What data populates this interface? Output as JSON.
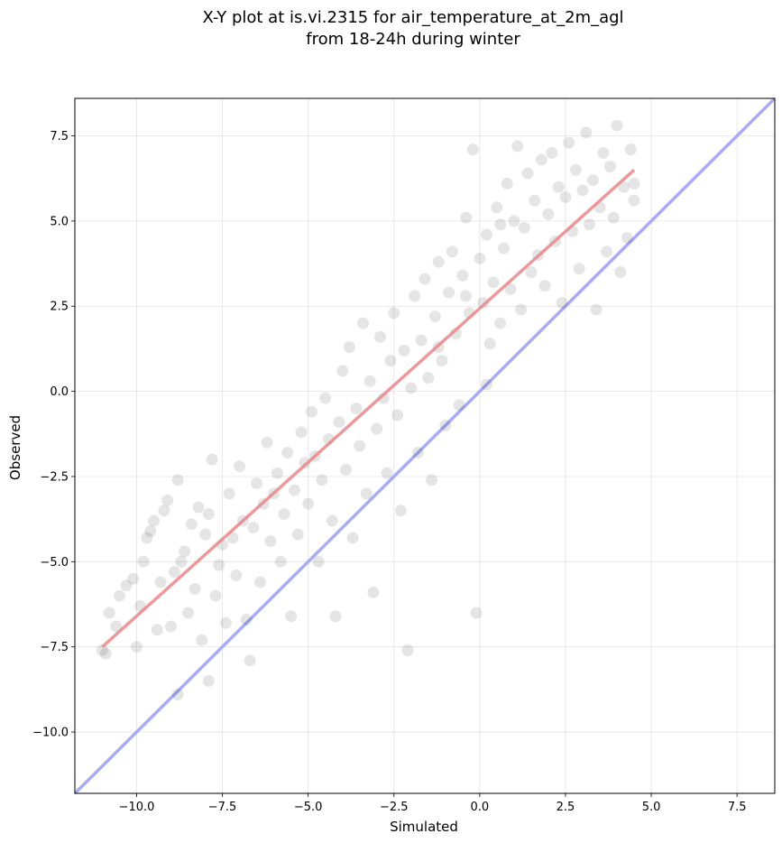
{
  "chart_data": {
    "type": "scatter",
    "title": "X-Y plot at is.vi.2315 for air_temperature_at_2m_agl",
    "subtitle": "from 18-24h during winter",
    "xlabel": "Simulated",
    "ylabel": "Observed",
    "xlim": [
      -11.8,
      8.6
    ],
    "ylim": [
      -11.8,
      8.6
    ],
    "x_ticks": [
      -10.0,
      -7.5,
      -5.0,
      -2.5,
      0.0,
      2.5,
      5.0,
      7.5
    ],
    "y_ticks": [
      -10.0,
      -7.5,
      -5.0,
      -2.5,
      0.0,
      2.5,
      5.0,
      7.5
    ],
    "x_tick_labels": [
      "−10.0",
      "−7.5",
      "−5.0",
      "−2.5",
      "0.0",
      "2.5",
      "5.0",
      "7.5"
    ],
    "y_tick_labels": [
      "−10.0",
      "−7.5",
      "−5.0",
      "−2.5",
      "0.0",
      "2.5",
      "5.0",
      "7.5"
    ],
    "grid": true,
    "point_color": "#000000",
    "point_alpha": 0.1,
    "points": [
      [
        -11.0,
        -7.6
      ],
      [
        -10.9,
        -7.7
      ],
      [
        -10.8,
        -6.5
      ],
      [
        -10.6,
        -6.9
      ],
      [
        -10.5,
        -6.0
      ],
      [
        -10.3,
        -5.7
      ],
      [
        -10.1,
        -5.5
      ],
      [
        -10.0,
        -7.5
      ],
      [
        -9.9,
        -6.3
      ],
      [
        -9.8,
        -5.0
      ],
      [
        -9.7,
        -4.3
      ],
      [
        -9.6,
        -4.1
      ],
      [
        -9.5,
        -3.8
      ],
      [
        -9.4,
        -7.0
      ],
      [
        -9.3,
        -5.6
      ],
      [
        -9.2,
        -3.5
      ],
      [
        -9.1,
        -3.2
      ],
      [
        -9.0,
        -6.9
      ],
      [
        -8.9,
        -5.3
      ],
      [
        -8.8,
        -2.6
      ],
      [
        -8.8,
        -8.9
      ],
      [
        -8.7,
        -5.0
      ],
      [
        -8.6,
        -4.7
      ],
      [
        -8.5,
        -6.5
      ],
      [
        -8.4,
        -3.9
      ],
      [
        -8.3,
        -5.8
      ],
      [
        -8.2,
        -3.4
      ],
      [
        -8.1,
        -7.3
      ],
      [
        -8.0,
        -4.2
      ],
      [
        -7.9,
        -3.6
      ],
      [
        -7.9,
        -8.5
      ],
      [
        -7.8,
        -2.0
      ],
      [
        -7.7,
        -6.0
      ],
      [
        -7.6,
        -5.1
      ],
      [
        -7.5,
        -4.5
      ],
      [
        -7.4,
        -6.8
      ],
      [
        -7.3,
        -3.0
      ],
      [
        -7.2,
        -4.3
      ],
      [
        -7.1,
        -5.4
      ],
      [
        -7.0,
        -2.2
      ],
      [
        -6.9,
        -3.8
      ],
      [
        -6.8,
        -6.7
      ],
      [
        -6.7,
        -7.9
      ],
      [
        -6.6,
        -4.0
      ],
      [
        -6.5,
        -2.7
      ],
      [
        -6.4,
        -5.6
      ],
      [
        -6.3,
        -3.3
      ],
      [
        -6.2,
        -1.5
      ],
      [
        -6.1,
        -4.4
      ],
      [
        -6.0,
        -3.0
      ],
      [
        -5.9,
        -2.4
      ],
      [
        -5.8,
        -5.0
      ],
      [
        -5.7,
        -3.6
      ],
      [
        -5.6,
        -1.8
      ],
      [
        -5.5,
        -6.6
      ],
      [
        -5.4,
        -2.9
      ],
      [
        -5.3,
        -4.2
      ],
      [
        -5.2,
        -1.2
      ],
      [
        -5.1,
        -2.1
      ],
      [
        -5.0,
        -3.3
      ],
      [
        -4.9,
        -0.6
      ],
      [
        -4.8,
        -1.9
      ],
      [
        -4.7,
        -5.0
      ],
      [
        -4.6,
        -2.6
      ],
      [
        -4.5,
        -0.2
      ],
      [
        -4.4,
        -1.4
      ],
      [
        -4.3,
        -3.8
      ],
      [
        -4.2,
        -6.6
      ],
      [
        -4.1,
        -0.9
      ],
      [
        -4.0,
        0.6
      ],
      [
        -3.9,
        -2.3
      ],
      [
        -3.8,
        1.3
      ],
      [
        -3.7,
        -4.3
      ],
      [
        -3.6,
        -0.5
      ],
      [
        -3.5,
        -1.6
      ],
      [
        -3.4,
        2.0
      ],
      [
        -3.3,
        -3.0
      ],
      [
        -3.2,
        0.3
      ],
      [
        -3.1,
        -5.9
      ],
      [
        -3.0,
        -1.1
      ],
      [
        -2.9,
        1.6
      ],
      [
        -2.8,
        -0.2
      ],
      [
        -2.7,
        -2.4
      ],
      [
        -2.6,
        0.9
      ],
      [
        -2.5,
        2.3
      ],
      [
        -2.4,
        -0.7
      ],
      [
        -2.3,
        -3.5
      ],
      [
        -2.2,
        1.2
      ],
      [
        -2.1,
        -7.6
      ],
      [
        -2.0,
        0.1
      ],
      [
        -1.9,
        2.8
      ],
      [
        -1.8,
        -1.8
      ],
      [
        -1.7,
        1.5
      ],
      [
        -1.6,
        3.3
      ],
      [
        -1.5,
        0.4
      ],
      [
        -1.4,
        -2.6
      ],
      [
        -1.3,
        2.2
      ],
      [
        -1.2,
        3.8
      ],
      [
        -1.1,
        0.9
      ],
      [
        -1.0,
        -1.0
      ],
      [
        -0.9,
        2.9
      ],
      [
        -0.8,
        4.1
      ],
      [
        -0.7,
        1.7
      ],
      [
        -0.6,
        -0.4
      ],
      [
        -0.5,
        3.4
      ],
      [
        -0.4,
        5.1
      ],
      [
        -0.3,
        2.3
      ],
      [
        -0.2,
        7.1
      ],
      [
        -0.1,
        -6.5
      ],
      [
        0.0,
        3.9
      ],
      [
        0.1,
        2.6
      ],
      [
        0.2,
        4.6
      ],
      [
        0.3,
        1.4
      ],
      [
        0.4,
        3.2
      ],
      [
        0.5,
        5.4
      ],
      [
        0.6,
        2.0
      ],
      [
        0.7,
        4.2
      ],
      [
        0.8,
        6.1
      ],
      [
        0.9,
        3.0
      ],
      [
        1.0,
        5.0
      ],
      [
        1.1,
        7.2
      ],
      [
        1.2,
        2.4
      ],
      [
        1.3,
        4.8
      ],
      [
        1.4,
        6.4
      ],
      [
        1.5,
        3.5
      ],
      [
        1.6,
        5.6
      ],
      [
        1.7,
        4.0
      ],
      [
        1.8,
        6.8
      ],
      [
        1.9,
        3.1
      ],
      [
        2.0,
        5.2
      ],
      [
        2.1,
        7.0
      ],
      [
        2.2,
        4.4
      ],
      [
        2.3,
        6.0
      ],
      [
        2.4,
        2.6
      ],
      [
        2.5,
        5.7
      ],
      [
        2.6,
        7.3
      ],
      [
        2.7,
        4.7
      ],
      [
        2.8,
        6.5
      ],
      [
        2.9,
        3.6
      ],
      [
        3.0,
        5.9
      ],
      [
        3.1,
        7.6
      ],
      [
        3.2,
        4.9
      ],
      [
        3.3,
        6.2
      ],
      [
        3.4,
        2.4
      ],
      [
        3.5,
        5.4
      ],
      [
        3.6,
        7.0
      ],
      [
        3.7,
        4.1
      ],
      [
        3.8,
        6.6
      ],
      [
        3.9,
        5.1
      ],
      [
        4.0,
        7.8
      ],
      [
        4.1,
        3.5
      ],
      [
        4.2,
        6.0
      ],
      [
        4.3,
        4.5
      ],
      [
        4.4,
        7.1
      ],
      [
        4.5,
        5.6
      ],
      [
        4.5,
        6.1
      ],
      [
        0.2,
        0.2
      ],
      [
        -0.4,
        2.8
      ],
      [
        0.6,
        4.9
      ],
      [
        -1.2,
        1.3
      ]
    ],
    "fit_line": {
      "x": [
        -11.0,
        4.5
      ],
      "y": [
        -7.5,
        6.5
      ],
      "color": "#e8878a"
    },
    "identity_line": {
      "x": [
        -11.8,
        8.6
      ],
      "y": [
        -11.8,
        8.6
      ],
      "color": "#a5a8f2"
    }
  }
}
